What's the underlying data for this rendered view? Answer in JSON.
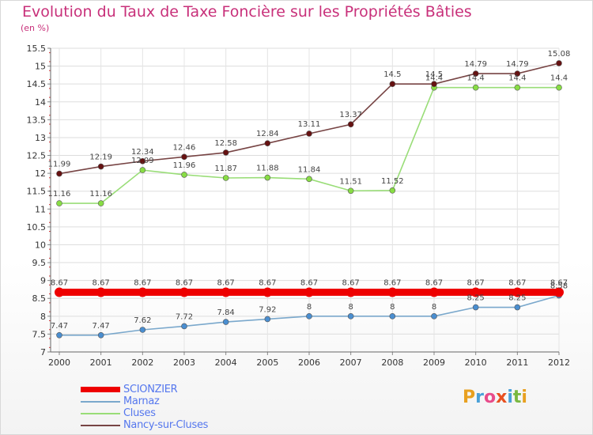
{
  "header": {
    "title": "Evolution du Taux de Taxe Foncière sur les Propriétés Bâties",
    "unit": "(en %)"
  },
  "logo": {
    "text": "Proxiti",
    "colors": [
      "#e8a020",
      "#4aa0d8",
      "#e84b8a",
      "#e85020",
      "#4aa0d8",
      "#7ab840",
      "#e8a020"
    ]
  },
  "chart_data": {
    "type": "line",
    "title": "Evolution du Taux de Taxe Foncière sur les Propriétés Bâties",
    "ylabel": "(en %)",
    "xlabel": "",
    "x": [
      "2000",
      "2001",
      "2002",
      "2003",
      "2004",
      "2005",
      "2006",
      "2007",
      "2008",
      "2009",
      "2010",
      "2011",
      "2012"
    ],
    "ylim": [
      7,
      15.5
    ],
    "yticks": [
      "7",
      "7.5",
      "8",
      "8.5",
      "9",
      "9.5",
      "10",
      "10.5",
      "11",
      "11.5",
      "12",
      "12.5",
      "13",
      "13.5",
      "14",
      "14.5",
      "15",
      "15.5"
    ],
    "grid": true,
    "legend_position": "bottom-left",
    "series": [
      {
        "name": "SCIONZIER",
        "color": "#ee0000",
        "line": "#ee0000",
        "emphasis": true,
        "values": [
          8.67,
          8.67,
          8.67,
          8.67,
          8.67,
          8.67,
          8.67,
          8.67,
          8.67,
          8.67,
          8.67,
          8.67,
          8.67
        ],
        "labels": [
          "8.67",
          "8.67",
          "8.67",
          "8.67",
          "8.67",
          "8.67",
          "8.67",
          "8.67",
          "8.67",
          "8.67",
          "8.67",
          "8.67",
          "8.67"
        ]
      },
      {
        "name": "Marnaz",
        "color": "#4a8ed0",
        "line": "#7aa8cc",
        "emphasis": false,
        "values": [
          7.47,
          7.47,
          7.62,
          7.72,
          7.84,
          7.92,
          8,
          8,
          8,
          8,
          8.25,
          8.25,
          8.58
        ],
        "labels": [
          "7.47",
          "7.47",
          "7.62",
          "7.72",
          "7.84",
          "7.92",
          "8",
          "8",
          "8",
          "8",
          "8.25",
          "8.25",
          "8.58"
        ]
      },
      {
        "name": "Cluses",
        "color": "#88dd44",
        "line": "#99dd77",
        "emphasis": false,
        "values": [
          11.16,
          11.16,
          12.09,
          11.96,
          11.87,
          11.88,
          11.84,
          11.51,
          11.52,
          14.4,
          14.4,
          14.4,
          14.4
        ],
        "labels": [
          "11.16",
          "11.16",
          "12.09",
          "11.96",
          "11.87",
          "11.88",
          "11.84",
          "11.51",
          "11.52",
          "14.4",
          "14.4",
          "14.4",
          "14.4"
        ]
      },
      {
        "name": "Nancy-sur-Cluses",
        "color": "#661111",
        "line": "#774444",
        "emphasis": false,
        "values": [
          11.99,
          12.19,
          12.34,
          12.46,
          12.58,
          12.84,
          13.11,
          13.37,
          14.5,
          14.5,
          14.79,
          14.79,
          15.08
        ],
        "labels": [
          "11.99",
          "12.19",
          "12.34",
          "12.46",
          "12.58",
          "12.84",
          "13.11",
          "13.37",
          "14.5",
          "14.5",
          "14.79",
          "14.79",
          "15.08"
        ]
      }
    ]
  }
}
